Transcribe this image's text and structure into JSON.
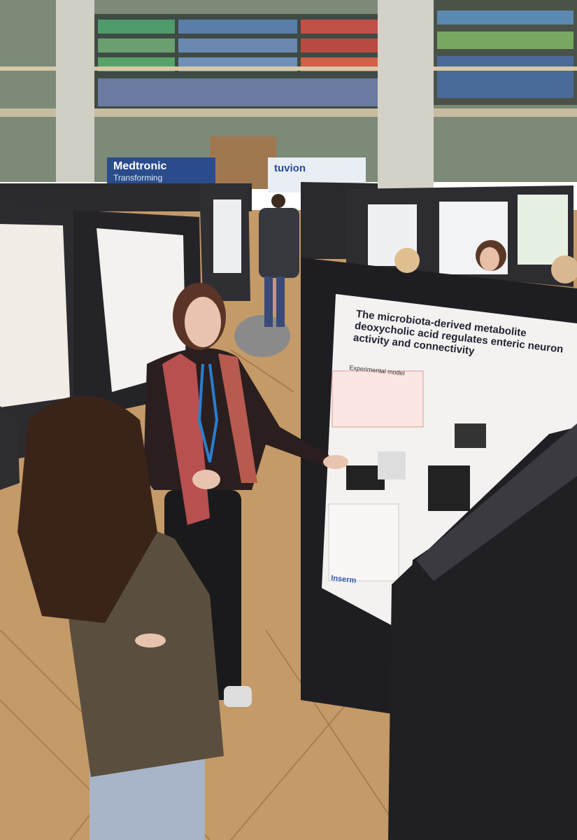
{
  "signs": {
    "medtronic": "Medtronic",
    "medtronic_tagline": "Transforming",
    "tuvion": "tuvion"
  },
  "poster": {
    "title": "The microbiota-derived metabolite deoxycholic acid regulates enteric neuron activity and connectivity",
    "section": "Experimental model",
    "logo": "Inserm"
  }
}
